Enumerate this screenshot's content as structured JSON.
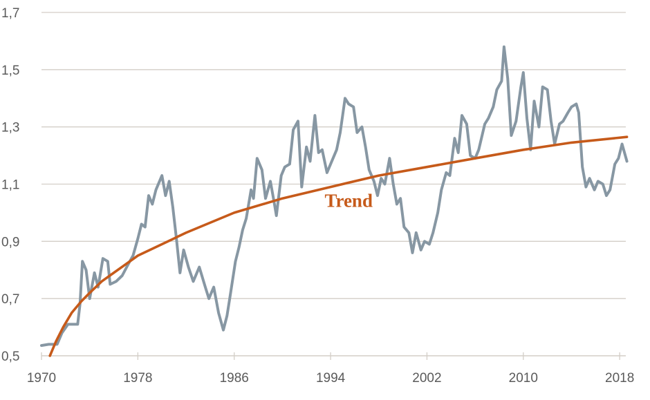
{
  "chart_data": {
    "type": "line",
    "title": "",
    "xlabel": "",
    "ylabel": "",
    "xlim": [
      1970,
      2018.6
    ],
    "ylim": [
      0.5,
      1.7
    ],
    "grid": true,
    "x_ticks": [
      1970,
      1978,
      1986,
      1994,
      2002,
      2010,
      2018
    ],
    "x_tick_labels": [
      "1970",
      "1978",
      "1986",
      "1994",
      "2002",
      "2010",
      "2018"
    ],
    "y_ticks": [
      0.5,
      0.7,
      0.9,
      1.1,
      1.3,
      1.5,
      1.7
    ],
    "y_tick_labels": [
      "0,5",
      "0,7",
      "0,9",
      "1,1",
      "1,3",
      "1,5",
      "1,7"
    ],
    "colors": {
      "series": "#8797a3",
      "trend": "#c65a1a",
      "grid": "#d3cec7",
      "text": "#5a5a5a"
    },
    "series": [
      {
        "x": [
          1970.0,
          1970.6,
          1971.3,
          1971.7,
          1972.2,
          1972.6,
          1973.0,
          1973.2,
          1973.4,
          1973.7,
          1974.0,
          1974.4,
          1974.7,
          1975.1,
          1975.5,
          1975.7,
          1976.2,
          1976.7,
          1977.2,
          1977.6,
          1978.0,
          1978.3,
          1978.6,
          1978.9,
          1979.2,
          1979.5,
          1980.0,
          1980.3,
          1980.6,
          1980.9,
          1981.2,
          1981.5,
          1981.8,
          1982.2,
          1982.6,
          1983.1,
          1983.6,
          1983.9,
          1984.3,
          1984.7,
          1985.1,
          1985.4,
          1985.7,
          1986.1,
          1986.4,
          1986.7,
          1987.0,
          1987.4,
          1987.6,
          1987.9,
          1988.3,
          1988.6,
          1989.0,
          1989.3,
          1989.5,
          1989.9,
          1990.2,
          1990.6,
          1990.9,
          1991.3,
          1991.6,
          1992.0,
          1992.3,
          1992.7,
          1993.0,
          1993.3,
          1993.7,
          1994.0,
          1994.5,
          1994.8,
          1995.2,
          1995.5,
          1995.9,
          1996.2,
          1996.6,
          1996.9,
          1997.2,
          1997.6,
          1997.9,
          1998.2,
          1998.5,
          1998.9,
          1999.2,
          1999.5,
          1999.8,
          2000.1,
          2000.5,
          2000.8,
          2001.1,
          2001.5,
          2001.8,
          2002.2,
          2002.5,
          2002.9,
          2003.2,
          2003.6,
          2003.9,
          2004.3,
          2004.6,
          2004.9,
          2005.3,
          2005.6,
          2006.0,
          2006.3,
          2006.8,
          2007.1,
          2007.5,
          2007.8,
          2008.2,
          2008.4,
          2008.7,
          2009.0,
          2009.4,
          2009.8,
          2010.0,
          2010.3,
          2010.6,
          2010.9,
          2011.3,
          2011.6,
          2012.0,
          2012.3,
          2012.6,
          2013.0,
          2013.3,
          2013.7,
          2014.0,
          2014.4,
          2014.6,
          2014.9,
          2015.2,
          2015.5,
          2015.9,
          2016.2,
          2016.6,
          2016.9,
          2017.2,
          2017.6,
          2017.9,
          2018.2,
          2018.6
        ],
        "y": [
          0.536,
          0.54,
          0.54,
          0.58,
          0.61,
          0.61,
          0.61,
          0.68,
          0.83,
          0.8,
          0.7,
          0.79,
          0.74,
          0.84,
          0.83,
          0.75,
          0.76,
          0.78,
          0.82,
          0.85,
          0.91,
          0.96,
          0.95,
          1.06,
          1.03,
          1.08,
          1.13,
          1.06,
          1.11,
          1.02,
          0.91,
          0.79,
          0.87,
          0.81,
          0.76,
          0.81,
          0.74,
          0.7,
          0.74,
          0.65,
          0.59,
          0.64,
          0.72,
          0.83,
          0.88,
          0.94,
          0.98,
          1.08,
          1.05,
          1.19,
          1.15,
          1.05,
          1.11,
          1.04,
          0.99,
          1.13,
          1.16,
          1.17,
          1.29,
          1.32,
          1.09,
          1.23,
          1.18,
          1.34,
          1.21,
          1.22,
          1.14,
          1.17,
          1.22,
          1.28,
          1.4,
          1.38,
          1.37,
          1.28,
          1.3,
          1.23,
          1.15,
          1.11,
          1.06,
          1.12,
          1.1,
          1.19,
          1.1,
          1.03,
          1.05,
          0.95,
          0.93,
          0.86,
          0.93,
          0.87,
          0.9,
          0.89,
          0.93,
          1.0,
          1.08,
          1.14,
          1.13,
          1.26,
          1.21,
          1.34,
          1.31,
          1.2,
          1.19,
          1.22,
          1.31,
          1.33,
          1.37,
          1.43,
          1.46,
          1.58,
          1.47,
          1.27,
          1.32,
          1.44,
          1.49,
          1.33,
          1.22,
          1.39,
          1.3,
          1.44,
          1.43,
          1.32,
          1.24,
          1.31,
          1.32,
          1.35,
          1.37,
          1.38,
          1.35,
          1.16,
          1.09,
          1.12,
          1.08,
          1.11,
          1.1,
          1.06,
          1.08,
          1.17,
          1.19,
          1.24,
          1.18
        ]
      },
      {
        "name": "Trend",
        "x": [
          1970.7,
          1971.2,
          1971.8,
          1972.5,
          1973.3,
          1974.0,
          1975.0,
          1976.0,
          1978.0,
          1980.0,
          1982.0,
          1986.0,
          1990.0,
          1994.0,
          1998.0,
          2002.0,
          2006.0,
          2010.0,
          2014.0,
          2018.6
        ],
        "y": [
          0.5,
          0.55,
          0.6,
          0.65,
          0.69,
          0.72,
          0.76,
          0.79,
          0.85,
          0.89,
          0.93,
          1.0,
          1.05,
          1.09,
          1.13,
          1.16,
          1.19,
          1.22,
          1.245,
          1.265
        ]
      }
    ],
    "annotations": [
      {
        "text": "Trend",
        "x": 1995.5,
        "y": 1.02
      }
    ]
  }
}
